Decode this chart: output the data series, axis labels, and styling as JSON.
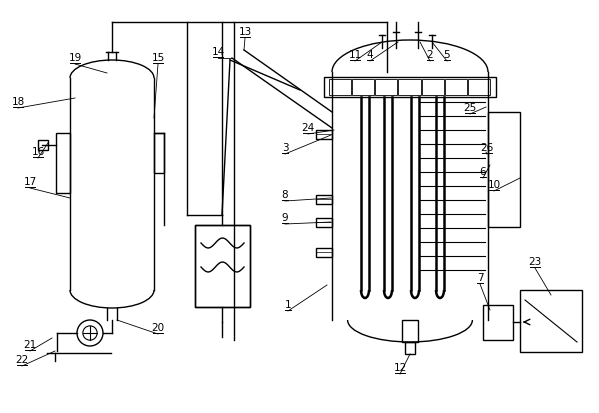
{
  "bg_color": "#ffffff",
  "line_color": "#000000",
  "lw": 1.0,
  "fs": 7.5,
  "fig_width": 5.99,
  "fig_height": 4.13,
  "dpi": 100
}
